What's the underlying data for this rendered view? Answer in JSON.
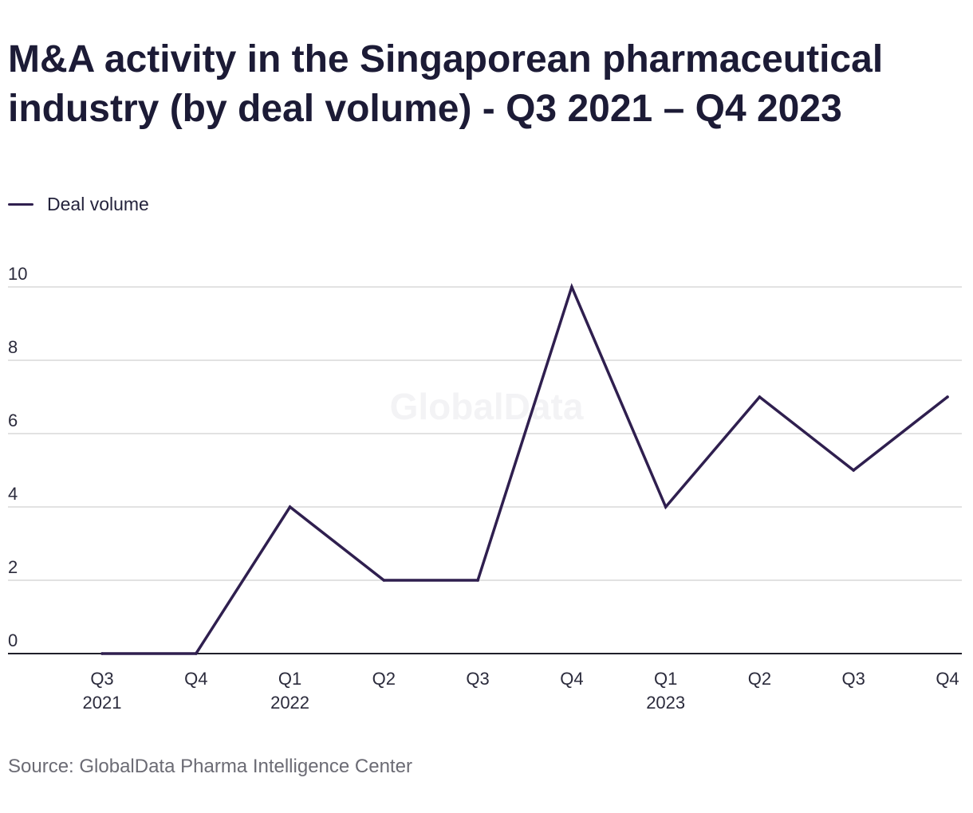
{
  "title": "M&A activity in the Singaporean pharmaceutical industry (by deal volume) - Q3 2021 – Q4 2023",
  "source": "Source: GlobalData Pharma Intelligence Center",
  "watermark": "GlobalData",
  "colors": {
    "line": "#2f1f4f",
    "grid": "#d9d9d9",
    "axis": "#1f1f2a"
  },
  "chart_data": {
    "type": "line",
    "categories": [
      {
        "line1": "Q3",
        "line2": "2021"
      },
      {
        "line1": "Q4",
        "line2": ""
      },
      {
        "line1": "Q1",
        "line2": "2022"
      },
      {
        "line1": "Q2",
        "line2": ""
      },
      {
        "line1": "Q3",
        "line2": ""
      },
      {
        "line1": "Q4",
        "line2": ""
      },
      {
        "line1": "Q1",
        "line2": "2023"
      },
      {
        "line1": "Q2",
        "line2": ""
      },
      {
        "line1": "Q3",
        "line2": ""
      },
      {
        "line1": "Q4",
        "line2": ""
      }
    ],
    "series": [
      {
        "name": "Deal volume",
        "values": [
          0,
          0,
          4,
          2,
          2,
          10,
          4,
          7,
          5,
          7
        ]
      }
    ],
    "yticks": [
      0,
      2,
      4,
      6,
      8,
      10
    ],
    "ylim": [
      0,
      10
    ],
    "grid": true,
    "legend_position": "top-left"
  }
}
